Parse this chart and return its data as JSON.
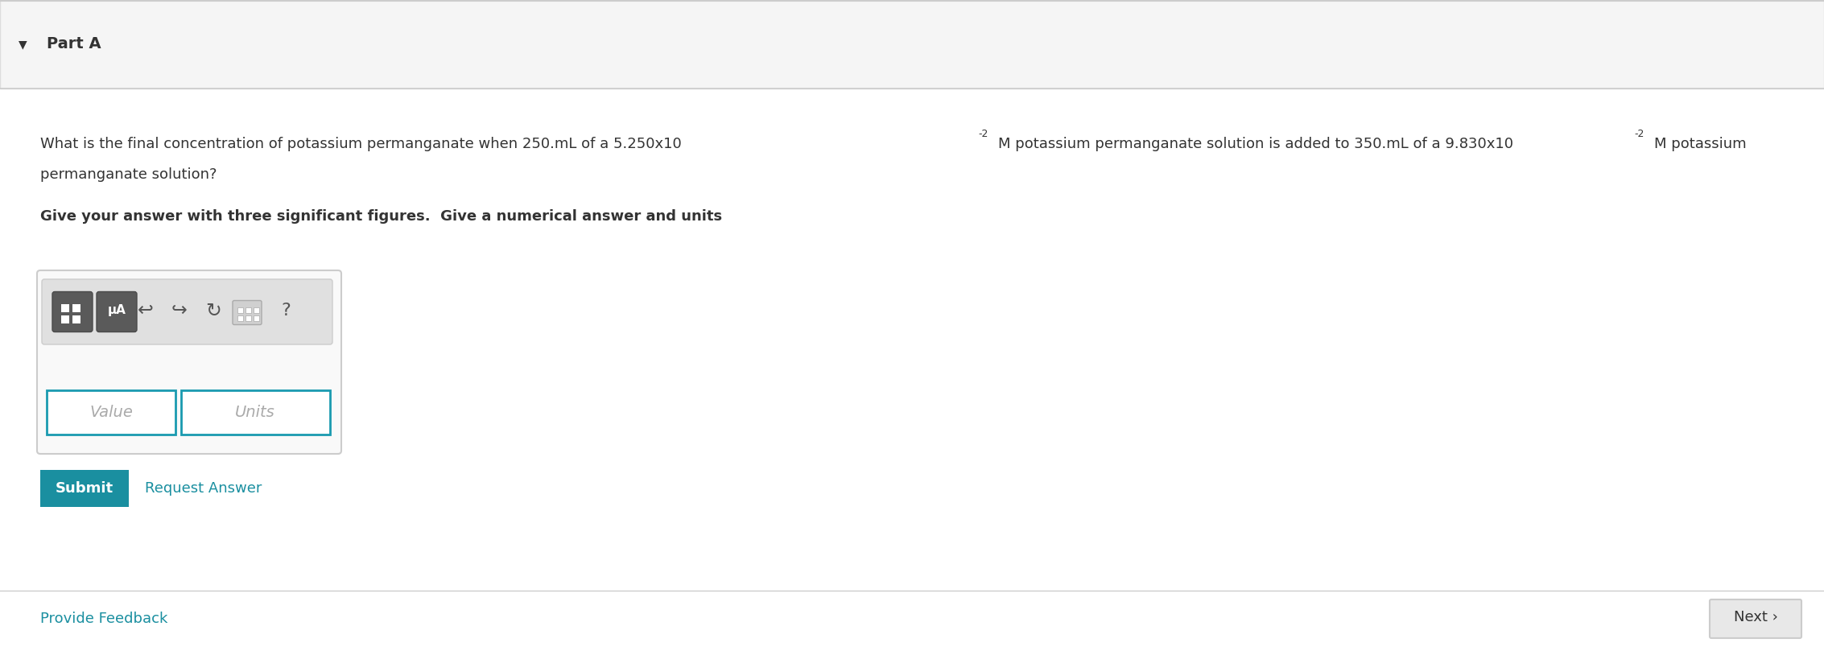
{
  "background_color": "#ffffff",
  "header_bg": "#f5f5f5",
  "header_border": "#dddddd",
  "part_label": "Part A",
  "arrow_symbol": "▼",
  "question_text_line1": "What is the final concentration of potassium permanganate when 250.mL of a 5.250x10",
  "question_superscript1": "-2",
  "question_text_mid1": "M potassium permanganate solution is added to 350.mL of a 9.830x10",
  "question_superscript2": "-2",
  "question_text_mid2": "M potassium",
  "question_text_line2": "permanganate solution?",
  "bold_instruction": "Give your answer with three significant figures.  Give a numerical answer and units",
  "toolbar_bg": "#e0e0e0",
  "toolbar_border": "#cccccc",
  "icon_mu_label": "μA",
  "value_placeholder": "Value",
  "units_placeholder": "Units",
  "input_border": "#1a9ab0",
  "submit_bg": "#1a8fa0",
  "submit_text": "Submit",
  "submit_text_color": "#ffffff",
  "request_answer_text": "Request Answer",
  "request_answer_color": "#1a8fa0",
  "provide_feedback_text": "Provide Feedback",
  "provide_feedback_color": "#1a8fa0",
  "next_button_text": "Next ›",
  "next_bg": "#e8e8e8",
  "next_border": "#cccccc",
  "separator_color": "#cccccc",
  "text_color": "#333333",
  "font_size_question": 13,
  "font_size_header": 14
}
